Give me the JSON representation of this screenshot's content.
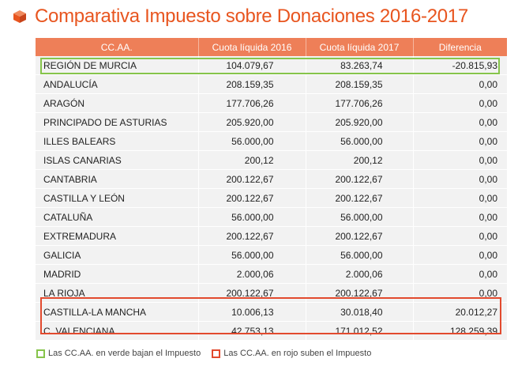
{
  "title": "Comparativa Impuesto sobre Donaciones 2016-2017",
  "colors": {
    "accent": "#e8551f",
    "header_bg": "#ee7f58",
    "row_bg": "#f2f2f2",
    "green": "#86c44b",
    "red": "#e24a2e"
  },
  "table": {
    "headers": [
      "CC.AA.",
      "Cuota líquida 2016",
      "Cuota líquida 2017",
      "Diferencia"
    ],
    "rows": [
      [
        "REGIÓN DE MURCIA",
        "104.079,67",
        "83.263,74",
        "-20.815,93"
      ],
      [
        "ANDALUCÍA",
        "208.159,35",
        "208.159,35",
        "0,00"
      ],
      [
        "ARAGÓN",
        "177.706,26",
        "177.706,26",
        "0,00"
      ],
      [
        "PRINCIPADO DE ASTURIAS",
        "205.920,00",
        "205.920,00",
        "0,00"
      ],
      [
        "ILLES BALEARS",
        "56.000,00",
        "56.000,00",
        "0,00"
      ],
      [
        "ISLAS CANARIAS",
        "200,12",
        "200,12",
        "0,00"
      ],
      [
        "CANTABRIA",
        "200.122,67",
        "200.122,67",
        "0,00"
      ],
      [
        "CASTILLA Y LEÓN",
        "200.122,67",
        "200.122,67",
        "0,00"
      ],
      [
        "CATALUÑA",
        "56.000,00",
        "56.000,00",
        "0,00"
      ],
      [
        "EXTREMADURA",
        "200.122,67",
        "200.122,67",
        "0,00"
      ],
      [
        "GALICIA",
        "56.000,00",
        "56.000,00",
        "0,00"
      ],
      [
        "MADRID",
        "2.000,06",
        "2.000,06",
        "0,00"
      ],
      [
        "LA RIOJA",
        "200.122,67",
        "200.122,67",
        "0,00"
      ],
      [
        "CASTILLA-LA MANCHA",
        "10.006,13",
        "30.018,40",
        "20.012,27"
      ],
      [
        "C. VALENCIANA",
        "42.753,13",
        "171.012,52",
        "128.259,39"
      ]
    ]
  },
  "legend": {
    "green_label": "Las CC.AA. en verde bajan el Impuesto",
    "red_label": "Las CC.AA. en rojo suben el Impuesto"
  }
}
